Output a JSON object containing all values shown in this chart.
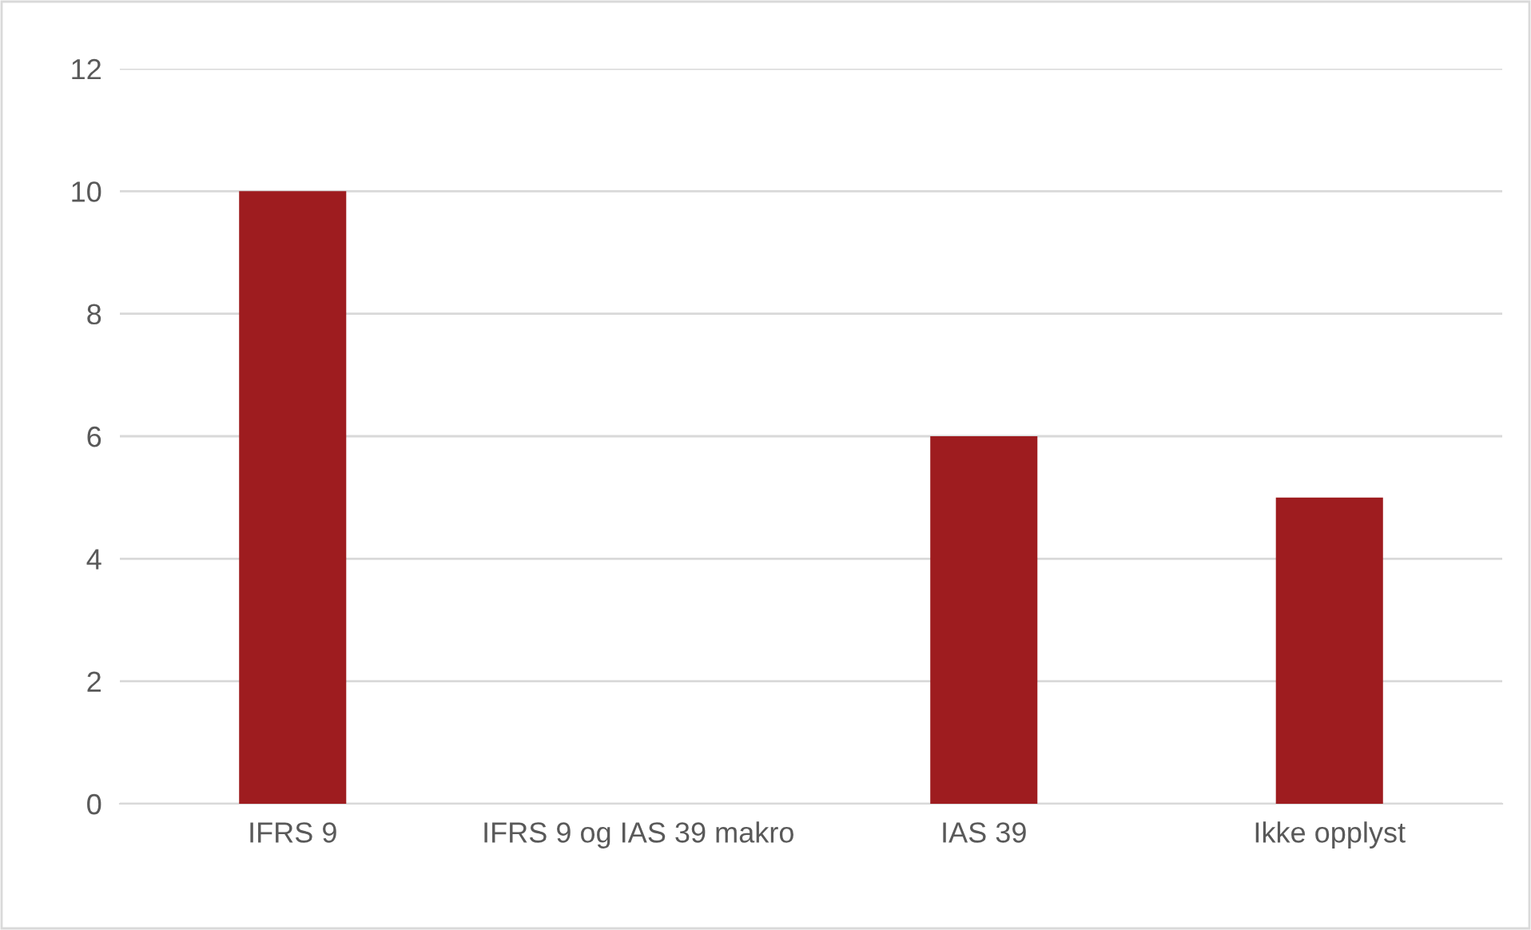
{
  "chart_data": {
    "type": "bar",
    "categories": [
      "IFRS 9",
      "IFRS 9 og IAS 39 makro",
      "IAS 39",
      "Ikke opplyst"
    ],
    "values": [
      10,
      0,
      6,
      5
    ],
    "color": "#9e1c1f",
    "ylim": [
      0,
      12
    ],
    "yticks": [
      0,
      2,
      4,
      6,
      8,
      10,
      12
    ],
    "grid": "y",
    "legend": false
  }
}
